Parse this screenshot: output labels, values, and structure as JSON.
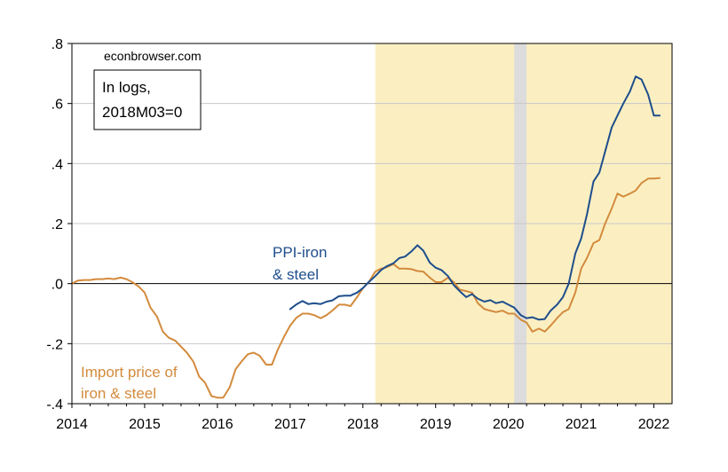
{
  "chart_data": {
    "type": "line",
    "watermark": "econbrowser.com",
    "note_lines": [
      "In logs,",
      "2018M03=0"
    ],
    "xlim": [
      2014.0,
      2022.25
    ],
    "ylim": [
      -0.4,
      0.8
    ],
    "x_ticks": [
      2014,
      2015,
      2016,
      2017,
      2018,
      2019,
      2020,
      2021,
      2022
    ],
    "x_tick_labels": [
      "2014",
      "2015",
      "2016",
      "2017",
      "2018",
      "2019",
      "2020",
      "2021",
      "2022"
    ],
    "y_ticks": [
      -0.4,
      -0.2,
      0.0,
      0.2,
      0.4,
      0.6,
      0.8
    ],
    "y_tick_labels": [
      "-.4",
      "-.2",
      ".0",
      ".2",
      ".4",
      ".6",
      ".8"
    ],
    "shaded_periods": [
      {
        "start": 2018.17,
        "end": 2022.25,
        "color": "#fbefc2"
      },
      {
        "start": 2020.08,
        "end": 2020.25,
        "color": "#dcdcdc"
      }
    ],
    "zero_line": true,
    "grid": true,
    "series": [
      {
        "name_lines": [
          "Import price of",
          "iron & steel"
        ],
        "color": "#d38b3d",
        "x": [
          2014.0,
          2014.08,
          2014.17,
          2014.25,
          2014.33,
          2014.42,
          2014.5,
          2014.58,
          2014.67,
          2014.75,
          2014.83,
          2014.92,
          2015.0,
          2015.08,
          2015.17,
          2015.25,
          2015.33,
          2015.42,
          2015.5,
          2015.58,
          2015.67,
          2015.75,
          2015.83,
          2015.92,
          2016.0,
          2016.08,
          2016.17,
          2016.25,
          2016.33,
          2016.42,
          2016.5,
          2016.58,
          2016.67,
          2016.75,
          2016.83,
          2016.92,
          2017.0,
          2017.08,
          2017.17,
          2017.25,
          2017.33,
          2017.42,
          2017.5,
          2017.58,
          2017.67,
          2017.75,
          2017.83,
          2017.92,
          2018.0,
          2018.08,
          2018.17,
          2018.25,
          2018.33,
          2018.42,
          2018.5,
          2018.58,
          2018.67,
          2018.75,
          2018.83,
          2018.92,
          2019.0,
          2019.08,
          2019.17,
          2019.25,
          2019.33,
          2019.42,
          2019.5,
          2019.58,
          2019.67,
          2019.75,
          2019.83,
          2019.92,
          2020.0,
          2020.08,
          2020.17,
          2020.25,
          2020.33,
          2020.42,
          2020.5,
          2020.58,
          2020.67,
          2020.75,
          2020.83,
          2020.92,
          2021.0,
          2021.08,
          2021.17,
          2021.25,
          2021.33,
          2021.42,
          2021.5,
          2021.58,
          2021.67,
          2021.75,
          2021.83,
          2021.92,
          2022.0,
          2022.08
        ],
        "values": [
          0.0,
          0.01,
          0.012,
          0.012,
          0.015,
          0.015,
          0.017,
          0.015,
          0.02,
          0.015,
          0.005,
          -0.01,
          -0.03,
          -0.08,
          -0.11,
          -0.16,
          -0.18,
          -0.19,
          -0.21,
          -0.23,
          -0.26,
          -0.31,
          -0.33,
          -0.375,
          -0.38,
          -0.38,
          -0.345,
          -0.285,
          -0.26,
          -0.235,
          -0.23,
          -0.24,
          -0.27,
          -0.27,
          -0.22,
          -0.175,
          -0.14,
          -0.115,
          -0.1,
          -0.1,
          -0.105,
          -0.115,
          -0.105,
          -0.09,
          -0.07,
          -0.07,
          -0.075,
          -0.045,
          -0.015,
          0.005,
          0.04,
          0.05,
          0.055,
          0.065,
          0.05,
          0.05,
          0.048,
          0.042,
          0.04,
          0.02,
          0.005,
          0.005,
          0.02,
          0.005,
          -0.02,
          -0.025,
          -0.03,
          -0.065,
          -0.085,
          -0.09,
          -0.095,
          -0.09,
          -0.1,
          -0.1,
          -0.12,
          -0.13,
          -0.16,
          -0.15,
          -0.16,
          -0.14,
          -0.115,
          -0.095,
          -0.085,
          -0.03,
          0.05,
          0.085,
          0.135,
          0.145,
          0.2,
          0.25,
          0.3,
          0.29,
          0.3,
          0.31,
          0.335,
          0.35,
          0.35,
          0.352
        ]
      },
      {
        "name_lines": [
          "PPI-iron",
          "& steel"
        ],
        "color": "#1f4e8c",
        "x": [
          2017.0,
          2017.08,
          2017.17,
          2017.25,
          2017.33,
          2017.42,
          2017.5,
          2017.58,
          2017.67,
          2017.75,
          2017.83,
          2017.92,
          2018.0,
          2018.08,
          2018.17,
          2018.25,
          2018.33,
          2018.42,
          2018.5,
          2018.58,
          2018.67,
          2018.75,
          2018.83,
          2018.92,
          2019.0,
          2019.08,
          2019.17,
          2019.25,
          2019.33,
          2019.42,
          2019.5,
          2019.58,
          2019.67,
          2019.75,
          2019.83,
          2019.92,
          2020.0,
          2020.08,
          2020.17,
          2020.25,
          2020.33,
          2020.42,
          2020.5,
          2020.58,
          2020.67,
          2020.75,
          2020.83,
          2020.92,
          2021.0,
          2021.08,
          2021.17,
          2021.25,
          2021.33,
          2021.42,
          2021.5,
          2021.58,
          2021.67,
          2021.75,
          2021.83,
          2021.92,
          2022.0,
          2022.08
        ],
        "values": [
          -0.085,
          -0.07,
          -0.058,
          -0.068,
          -0.065,
          -0.068,
          -0.06,
          -0.056,
          -0.042,
          -0.04,
          -0.04,
          -0.03,
          -0.015,
          0.005,
          0.025,
          0.045,
          0.058,
          0.068,
          0.085,
          0.09,
          0.108,
          0.128,
          0.11,
          0.07,
          0.053,
          0.045,
          0.025,
          -0.005,
          -0.025,
          -0.045,
          -0.035,
          -0.05,
          -0.06,
          -0.055,
          -0.065,
          -0.06,
          -0.07,
          -0.08,
          -0.105,
          -0.115,
          -0.112,
          -0.12,
          -0.118,
          -0.09,
          -0.07,
          -0.045,
          0.0,
          0.1,
          0.15,
          0.23,
          0.34,
          0.37,
          0.44,
          0.52,
          0.56,
          0.6,
          0.64,
          0.69,
          0.68,
          0.63,
          0.56,
          0.56
        ]
      }
    ]
  }
}
